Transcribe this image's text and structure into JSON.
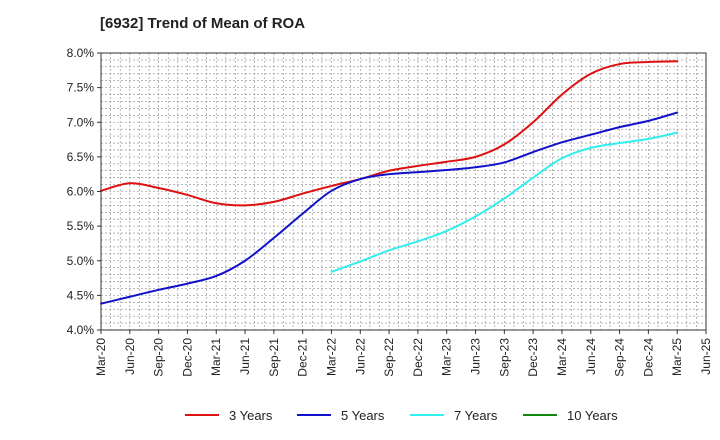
{
  "chart_data": {
    "type": "line",
    "title": "[6932]  Trend of Mean of ROA",
    "xlabel": "",
    "ylabel": "",
    "x": [
      "Mar-20",
      "Jun-20",
      "Sep-20",
      "Dec-20",
      "Mar-21",
      "Jun-21",
      "Sep-21",
      "Dec-21",
      "Mar-22",
      "Jun-22",
      "Sep-22",
      "Dec-22",
      "Mar-23",
      "Jun-23",
      "Sep-23",
      "Dec-23",
      "Mar-24",
      "Jun-24",
      "Sep-24",
      "Dec-24",
      "Mar-25",
      "Jun-25"
    ],
    "ylim": [
      4.0,
      8.0
    ],
    "yticks": [
      4.0,
      4.5,
      5.0,
      5.5,
      6.0,
      6.5,
      7.0,
      7.5,
      8.0
    ],
    "ytick_labels": [
      "4.0%",
      "4.5%",
      "5.0%",
      "5.5%",
      "6.0%",
      "6.5%",
      "7.0%",
      "7.5%",
      "8.0%"
    ],
    "grid": true,
    "legend_position": "bottom",
    "series": [
      {
        "name": "3 Years",
        "color": "#dd1111",
        "values": [
          6.01,
          6.12,
          6.05,
          5.95,
          5.83,
          5.8,
          5.85,
          5.97,
          6.08,
          6.18,
          6.3,
          6.37,
          6.43,
          6.5,
          6.68,
          7.0,
          7.4,
          7.7,
          7.84,
          7.87,
          7.88,
          null
        ]
      },
      {
        "name": "5 Years",
        "color": "#1111cc",
        "values": [
          4.38,
          4.48,
          4.58,
          4.67,
          4.78,
          5.0,
          5.33,
          5.68,
          6.01,
          6.18,
          6.25,
          6.28,
          6.31,
          6.35,
          6.42,
          6.57,
          6.71,
          6.82,
          6.93,
          7.02,
          7.14,
          null
        ]
      },
      {
        "name": "7 Years",
        "color": "#33eeee",
        "values": [
          null,
          null,
          null,
          null,
          null,
          null,
          null,
          null,
          4.84,
          4.99,
          5.15,
          5.28,
          5.43,
          5.64,
          5.9,
          6.2,
          6.48,
          6.63,
          6.7,
          6.76,
          6.85,
          null
        ]
      },
      {
        "name": "10 Years",
        "color": "#118811",
        "values": [
          null,
          null,
          null,
          null,
          null,
          null,
          null,
          null,
          null,
          null,
          null,
          null,
          null,
          null,
          null,
          null,
          null,
          null,
          null,
          null,
          null,
          null
        ]
      }
    ]
  }
}
